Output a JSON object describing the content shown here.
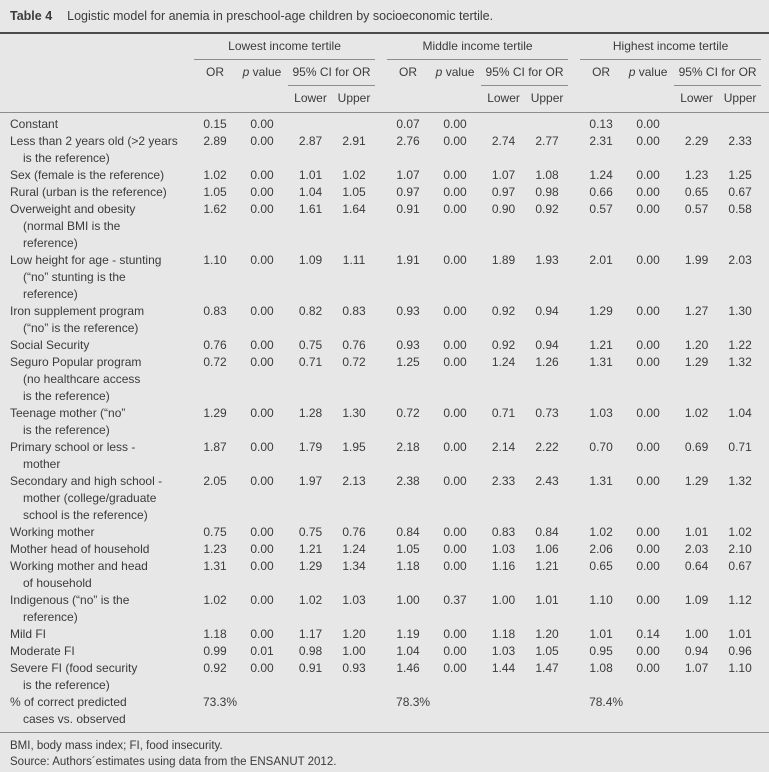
{
  "title": {
    "tag": "Table 4",
    "text": "Logistic model for anemia in preschool-age children by socioeconomic tertile."
  },
  "header": {
    "groups": [
      "Lowest income tertile",
      "Middle income tertile",
      "Highest income tertile"
    ],
    "subcols": {
      "or": "OR",
      "p_italic": "p",
      "p_rest": "value",
      "ci": "95% CI for OR",
      "lower": "Lower",
      "upper": "Upper"
    }
  },
  "rows": [
    {
      "label": "Constant",
      "values": [
        "0.15",
        "0.00",
        "",
        "",
        "0.07",
        "0.00",
        "",
        "",
        "0.13",
        "0.00",
        "",
        ""
      ]
    },
    {
      "label": "Less than 2 years old (>2 years\nis the reference)",
      "values": [
        "2.89",
        "0.00",
        "2.87",
        "2.91",
        "2.76",
        "0.00",
        "2.74",
        "2.77",
        "2.31",
        "0.00",
        "2.29",
        "2.33"
      ]
    },
    {
      "label": "Sex (female is the reference)",
      "values": [
        "1.02",
        "0.00",
        "1.01",
        "1.02",
        "1.07",
        "0.00",
        "1.07",
        "1.08",
        "1.24",
        "0.00",
        "1.23",
        "1.25"
      ]
    },
    {
      "label": "Rural (urban is the reference)",
      "values": [
        "1.05",
        "0.00",
        "1.04",
        "1.05",
        "0.97",
        "0.00",
        "0.97",
        "0.98",
        "0.66",
        "0.00",
        "0.65",
        "0.67"
      ]
    },
    {
      "label": "Overweight and obesity\n(normal BMI is the\nreference)",
      "values": [
        "1.62",
        "0.00",
        "1.61",
        "1.64",
        "0.91",
        "0.00",
        "0.90",
        "0.92",
        "0.57",
        "0.00",
        "0.57",
        "0.58"
      ]
    },
    {
      "label": "Low height for age - stunting\n(“no” stunting is the\nreference)",
      "values": [
        "1.10",
        "0.00",
        "1.09",
        "1.11",
        "1.91",
        "0.00",
        "1.89",
        "1.93",
        "2.01",
        "0.00",
        "1.99",
        "2.03"
      ]
    },
    {
      "label": "Iron supplement program\n(“no” is the reference)",
      "values": [
        "0.83",
        "0.00",
        "0.82",
        "0.83",
        "0.93",
        "0.00",
        "0.92",
        "0.94",
        "1.29",
        "0.00",
        "1.27",
        "1.30"
      ]
    },
    {
      "label": "Social Security",
      "values": [
        "0.76",
        "0.00",
        "0.75",
        "0.76",
        "0.93",
        "0.00",
        "0.92",
        "0.94",
        "1.21",
        "0.00",
        "1.20",
        "1.22"
      ]
    },
    {
      "label": "Seguro Popular program\n(no healthcare access\nis the reference)",
      "values": [
        "0.72",
        "0.00",
        "0.71",
        "0.72",
        "1.25",
        "0.00",
        "1.24",
        "1.26",
        "1.31",
        "0.00",
        "1.29",
        "1.32"
      ]
    },
    {
      "label": "Teenage mother (“no”\nis the reference)",
      "values": [
        "1.29",
        "0.00",
        "1.28",
        "1.30",
        "0.72",
        "0.00",
        "0.71",
        "0.73",
        "1.03",
        "0.00",
        "1.02",
        "1.04"
      ]
    },
    {
      "label": "Primary school or less -\nmother",
      "values": [
        "1.87",
        "0.00",
        "1.79",
        "1.95",
        "2.18",
        "0.00",
        "2.14",
        "2.22",
        "0.70",
        "0.00",
        "0.69",
        "0.71"
      ]
    },
    {
      "label": "Secondary and high school -\nmother (college/graduate\nschool is the reference)",
      "values": [
        "2.05",
        "0.00",
        "1.97",
        "2.13",
        "2.38",
        "0.00",
        "2.33",
        "2.43",
        "1.31",
        "0.00",
        "1.29",
        "1.32"
      ]
    },
    {
      "label": "Working mother",
      "values": [
        "0.75",
        "0.00",
        "0.75",
        "0.76",
        "0.84",
        "0.00",
        "0.83",
        "0.84",
        "1.02",
        "0.00",
        "1.01",
        "1.02"
      ]
    },
    {
      "label": "Mother head of household",
      "values": [
        "1.23",
        "0.00",
        "1.21",
        "1.24",
        "1.05",
        "0.00",
        "1.03",
        "1.06",
        "2.06",
        "0.00",
        "2.03",
        "2.10"
      ]
    },
    {
      "label": "Working mother and head\nof household",
      "values": [
        "1.31",
        "0.00",
        "1.29",
        "1.34",
        "1.18",
        "0.00",
        "1.16",
        "1.21",
        "0.65",
        "0.00",
        "0.64",
        "0.67"
      ]
    },
    {
      "label": "Indigenous (“no” is the\nreference)",
      "values": [
        "1.02",
        "0.00",
        "1.02",
        "1.03",
        "1.00",
        "0.37",
        "1.00",
        "1.01",
        "1.10",
        "0.00",
        "1.09",
        "1.12"
      ]
    },
    {
      "label": "Mild FI",
      "values": [
        "1.18",
        "0.00",
        "1.17",
        "1.20",
        "1.19",
        "0.00",
        "1.18",
        "1.20",
        "1.01",
        "0.14",
        "1.00",
        "1.01"
      ]
    },
    {
      "label": "Moderate FI",
      "values": [
        "0.99",
        "0.01",
        "0.98",
        "1.00",
        "1.04",
        "0.00",
        "1.03",
        "1.05",
        "0.95",
        "0.00",
        "0.94",
        "0.96"
      ]
    },
    {
      "label": "Severe FI (food security\nis the reference)",
      "values": [
        "0.92",
        "0.00",
        "0.91",
        "0.93",
        "1.46",
        "0.00",
        "1.44",
        "1.47",
        "1.08",
        "0.00",
        "1.07",
        "1.10"
      ]
    }
  ],
  "summary_row": {
    "label": "% of correct predicted\ncases vs. observed",
    "values": [
      "73.3%",
      "78.3%",
      "78.4%"
    ]
  },
  "footnotes": [
    "BMI, body mass index; FI, food insecurity.",
    "Source: Authors´estimates using data from the ENSANUT 2012."
  ],
  "colors": {
    "background": "#e7e7e7",
    "text": "#3b3b3b",
    "rule_thick": "#4a4a4a",
    "rule_thin": "#8d8d8d"
  }
}
